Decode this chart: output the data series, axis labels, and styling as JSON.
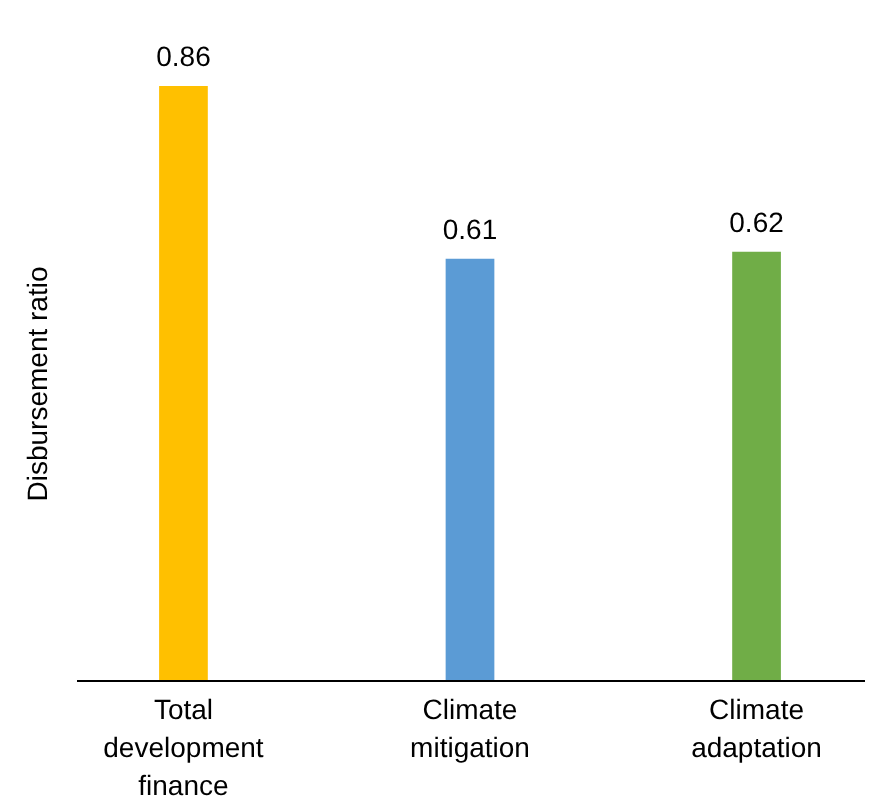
{
  "chart_data": {
    "type": "bar",
    "ylabel": "Disbursement ratio",
    "categories": [
      "Total development finance",
      "Climate mitigation",
      "Climate adaptation"
    ],
    "values": [
      0.86,
      0.61,
      0.62
    ],
    "colors": [
      "#ffc000",
      "#5b9bd5",
      "#70ad47"
    ],
    "data_labels": true
  }
}
